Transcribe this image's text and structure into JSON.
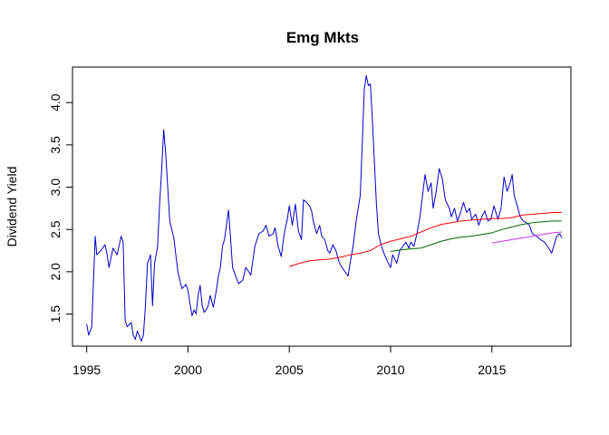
{
  "chart_data": {
    "type": "line",
    "title": "Emg Mkts",
    "xlabel": "",
    "ylabel": "Dividend Yield",
    "xlim": [
      1994.3,
      2018.9
    ],
    "ylim": [
      1.12,
      4.42
    ],
    "x_ticks": [
      1995,
      2000,
      2005,
      2010,
      2015
    ],
    "y_ticks": [
      1.5,
      2.0,
      2.5,
      3.0,
      3.5,
      4.0
    ],
    "x_tick_labels": [
      "1995",
      "2000",
      "2005",
      "2010",
      "2015"
    ],
    "y_tick_labels": [
      "1.5",
      "2.0",
      "2.5",
      "3.0",
      "3.5",
      "4.0"
    ],
    "grid": false,
    "series": [
      {
        "color": "#0000cc",
        "points": [
          [
            1995.0,
            1.38
          ],
          [
            1995.1,
            1.25
          ],
          [
            1995.25,
            1.35
          ],
          [
            1995.42,
            2.42
          ],
          [
            1995.5,
            2.2
          ],
          [
            1995.7,
            2.25
          ],
          [
            1995.9,
            2.32
          ],
          [
            1996.0,
            2.22
          ],
          [
            1996.1,
            2.05
          ],
          [
            1996.3,
            2.28
          ],
          [
            1996.5,
            2.2
          ],
          [
            1996.7,
            2.42
          ],
          [
            1996.8,
            2.35
          ],
          [
            1996.9,
            1.42
          ],
          [
            1997.0,
            1.35
          ],
          [
            1997.2,
            1.4
          ],
          [
            1997.3,
            1.25
          ],
          [
            1997.4,
            1.2
          ],
          [
            1997.5,
            1.3
          ],
          [
            1997.7,
            1.18
          ],
          [
            1997.8,
            1.25
          ],
          [
            1997.9,
            1.6
          ],
          [
            1998.0,
            2.1
          ],
          [
            1998.15,
            2.2
          ],
          [
            1998.25,
            1.6
          ],
          [
            1998.35,
            2.1
          ],
          [
            1998.5,
            2.3
          ],
          [
            1998.6,
            2.8
          ],
          [
            1998.7,
            3.2
          ],
          [
            1998.8,
            3.68
          ],
          [
            1998.9,
            3.4
          ],
          [
            1999.0,
            3.0
          ],
          [
            1999.1,
            2.6
          ],
          [
            1999.3,
            2.4
          ],
          [
            1999.5,
            2.0
          ],
          [
            1999.7,
            1.8
          ],
          [
            1999.9,
            1.85
          ],
          [
            2000.0,
            1.78
          ],
          [
            2000.1,
            1.62
          ],
          [
            2000.2,
            1.48
          ],
          [
            2000.3,
            1.55
          ],
          [
            2000.4,
            1.5
          ],
          [
            2000.5,
            1.72
          ],
          [
            2000.6,
            1.84
          ],
          [
            2000.7,
            1.6
          ],
          [
            2000.8,
            1.52
          ],
          [
            2000.9,
            1.55
          ],
          [
            2001.0,
            1.6
          ],
          [
            2001.1,
            1.72
          ],
          [
            2001.25,
            1.58
          ],
          [
            2001.4,
            1.78
          ],
          [
            2001.5,
            1.95
          ],
          [
            2001.6,
            2.05
          ],
          [
            2001.7,
            2.3
          ],
          [
            2001.8,
            2.38
          ],
          [
            2001.9,
            2.55
          ],
          [
            2002.0,
            2.73
          ],
          [
            2002.1,
            2.4
          ],
          [
            2002.2,
            2.05
          ],
          [
            2002.35,
            1.95
          ],
          [
            2002.5,
            1.86
          ],
          [
            2002.7,
            1.9
          ],
          [
            2002.85,
            2.05
          ],
          [
            2003.0,
            2.0
          ],
          [
            2003.1,
            1.96
          ],
          [
            2003.3,
            2.3
          ],
          [
            2003.5,
            2.45
          ],
          [
            2003.7,
            2.48
          ],
          [
            2003.85,
            2.55
          ],
          [
            2004.0,
            2.42
          ],
          [
            2004.2,
            2.45
          ],
          [
            2004.3,
            2.52
          ],
          [
            2004.45,
            2.3
          ],
          [
            2004.6,
            2.18
          ],
          [
            2004.75,
            2.45
          ],
          [
            2004.9,
            2.62
          ],
          [
            2005.0,
            2.78
          ],
          [
            2005.15,
            2.55
          ],
          [
            2005.3,
            2.8
          ],
          [
            2005.45,
            2.48
          ],
          [
            2005.6,
            2.38
          ],
          [
            2005.7,
            2.85
          ],
          [
            2005.85,
            2.82
          ],
          [
            2006.0,
            2.78
          ],
          [
            2006.1,
            2.72
          ],
          [
            2006.2,
            2.58
          ],
          [
            2006.35,
            2.45
          ],
          [
            2006.5,
            2.55
          ],
          [
            2006.6,
            2.42
          ],
          [
            2006.75,
            2.38
          ],
          [
            2006.9,
            2.25
          ],
          [
            2007.0,
            2.22
          ],
          [
            2007.15,
            2.32
          ],
          [
            2007.3,
            2.25
          ],
          [
            2007.45,
            2.12
          ],
          [
            2007.6,
            2.05
          ],
          [
            2007.75,
            2.0
          ],
          [
            2007.9,
            1.95
          ],
          [
            2008.0,
            2.1
          ],
          [
            2008.15,
            2.3
          ],
          [
            2008.3,
            2.6
          ],
          [
            2008.5,
            2.9
          ],
          [
            2008.6,
            3.5
          ],
          [
            2008.7,
            4.15
          ],
          [
            2008.8,
            4.32
          ],
          [
            2008.9,
            4.2
          ],
          [
            2009.0,
            4.22
          ],
          [
            2009.1,
            3.8
          ],
          [
            2009.2,
            3.3
          ],
          [
            2009.3,
            2.8
          ],
          [
            2009.4,
            2.45
          ],
          [
            2009.55,
            2.3
          ],
          [
            2009.7,
            2.2
          ],
          [
            2009.85,
            2.12
          ],
          [
            2010.0,
            2.05
          ],
          [
            2010.1,
            2.2
          ],
          [
            2010.3,
            2.1
          ],
          [
            2010.45,
            2.25
          ],
          [
            2010.6,
            2.3
          ],
          [
            2010.75,
            2.35
          ],
          [
            2010.9,
            2.28
          ],
          [
            2011.0,
            2.35
          ],
          [
            2011.15,
            2.3
          ],
          [
            2011.3,
            2.45
          ],
          [
            2011.45,
            2.65
          ],
          [
            2011.6,
            2.95
          ],
          [
            2011.7,
            3.15
          ],
          [
            2011.85,
            2.95
          ],
          [
            2012.0,
            3.05
          ],
          [
            2012.1,
            2.75
          ],
          [
            2012.25,
            2.95
          ],
          [
            2012.4,
            3.22
          ],
          [
            2012.55,
            3.1
          ],
          [
            2012.7,
            2.85
          ],
          [
            2012.9,
            2.75
          ],
          [
            2013.0,
            2.65
          ],
          [
            2013.15,
            2.75
          ],
          [
            2013.3,
            2.6
          ],
          [
            2013.45,
            2.7
          ],
          [
            2013.6,
            2.82
          ],
          [
            2013.75,
            2.7
          ],
          [
            2013.9,
            2.75
          ],
          [
            2014.0,
            2.62
          ],
          [
            2014.2,
            2.68
          ],
          [
            2014.35,
            2.55
          ],
          [
            2014.5,
            2.65
          ],
          [
            2014.65,
            2.72
          ],
          [
            2014.8,
            2.6
          ],
          [
            2014.95,
            2.62
          ],
          [
            2015.1,
            2.78
          ],
          [
            2015.3,
            2.62
          ],
          [
            2015.45,
            2.75
          ],
          [
            2015.6,
            3.12
          ],
          [
            2015.75,
            2.95
          ],
          [
            2015.9,
            3.05
          ],
          [
            2016.0,
            3.15
          ],
          [
            2016.1,
            2.9
          ],
          [
            2016.25,
            2.78
          ],
          [
            2016.4,
            2.65
          ],
          [
            2016.55,
            2.6
          ],
          [
            2016.7,
            2.58
          ],
          [
            2016.85,
            2.55
          ],
          [
            2017.0,
            2.45
          ],
          [
            2017.2,
            2.42
          ],
          [
            2017.4,
            2.38
          ],
          [
            2017.6,
            2.35
          ],
          [
            2017.8,
            2.28
          ],
          [
            2017.95,
            2.22
          ],
          [
            2018.05,
            2.3
          ],
          [
            2018.2,
            2.42
          ],
          [
            2018.35,
            2.45
          ],
          [
            2018.45,
            2.4
          ]
        ]
      },
      {
        "color": "#ff0000",
        "points": [
          [
            2005.0,
            2.06
          ],
          [
            2005.5,
            2.1
          ],
          [
            2006.0,
            2.13
          ],
          [
            2006.5,
            2.14
          ],
          [
            2007.0,
            2.15
          ],
          [
            2007.5,
            2.17
          ],
          [
            2008.0,
            2.2
          ],
          [
            2008.5,
            2.22
          ],
          [
            2009.0,
            2.25
          ],
          [
            2009.5,
            2.32
          ],
          [
            2010.0,
            2.36
          ],
          [
            2010.5,
            2.39
          ],
          [
            2011.0,
            2.42
          ],
          [
            2011.5,
            2.47
          ],
          [
            2012.0,
            2.52
          ],
          [
            2012.5,
            2.56
          ],
          [
            2013.0,
            2.58
          ],
          [
            2013.5,
            2.6
          ],
          [
            2014.0,
            2.61
          ],
          [
            2014.5,
            2.62
          ],
          [
            2015.0,
            2.63
          ],
          [
            2015.5,
            2.63
          ],
          [
            2016.0,
            2.64
          ],
          [
            2016.5,
            2.67
          ],
          [
            2017.0,
            2.68
          ],
          [
            2017.5,
            2.69
          ],
          [
            2018.0,
            2.7
          ],
          [
            2018.45,
            2.7
          ]
        ]
      },
      {
        "color": "#006600",
        "points": [
          [
            2010.0,
            2.24
          ],
          [
            2010.5,
            2.26
          ],
          [
            2011.0,
            2.27
          ],
          [
            2011.5,
            2.28
          ],
          [
            2012.0,
            2.32
          ],
          [
            2012.5,
            2.36
          ],
          [
            2013.0,
            2.39
          ],
          [
            2013.5,
            2.41
          ],
          [
            2014.0,
            2.42
          ],
          [
            2014.5,
            2.44
          ],
          [
            2015.0,
            2.46
          ],
          [
            2015.5,
            2.5
          ],
          [
            2016.0,
            2.53
          ],
          [
            2016.5,
            2.56
          ],
          [
            2017.0,
            2.58
          ],
          [
            2017.5,
            2.59
          ],
          [
            2018.0,
            2.6
          ],
          [
            2018.45,
            2.6
          ]
        ]
      },
      {
        "color": "#cc33ff",
        "points": [
          [
            2015.0,
            2.34
          ],
          [
            2015.5,
            2.36
          ],
          [
            2016.0,
            2.38
          ],
          [
            2016.5,
            2.4
          ],
          [
            2017.0,
            2.42
          ],
          [
            2017.5,
            2.44
          ],
          [
            2018.0,
            2.46
          ],
          [
            2018.45,
            2.47
          ]
        ]
      }
    ]
  }
}
